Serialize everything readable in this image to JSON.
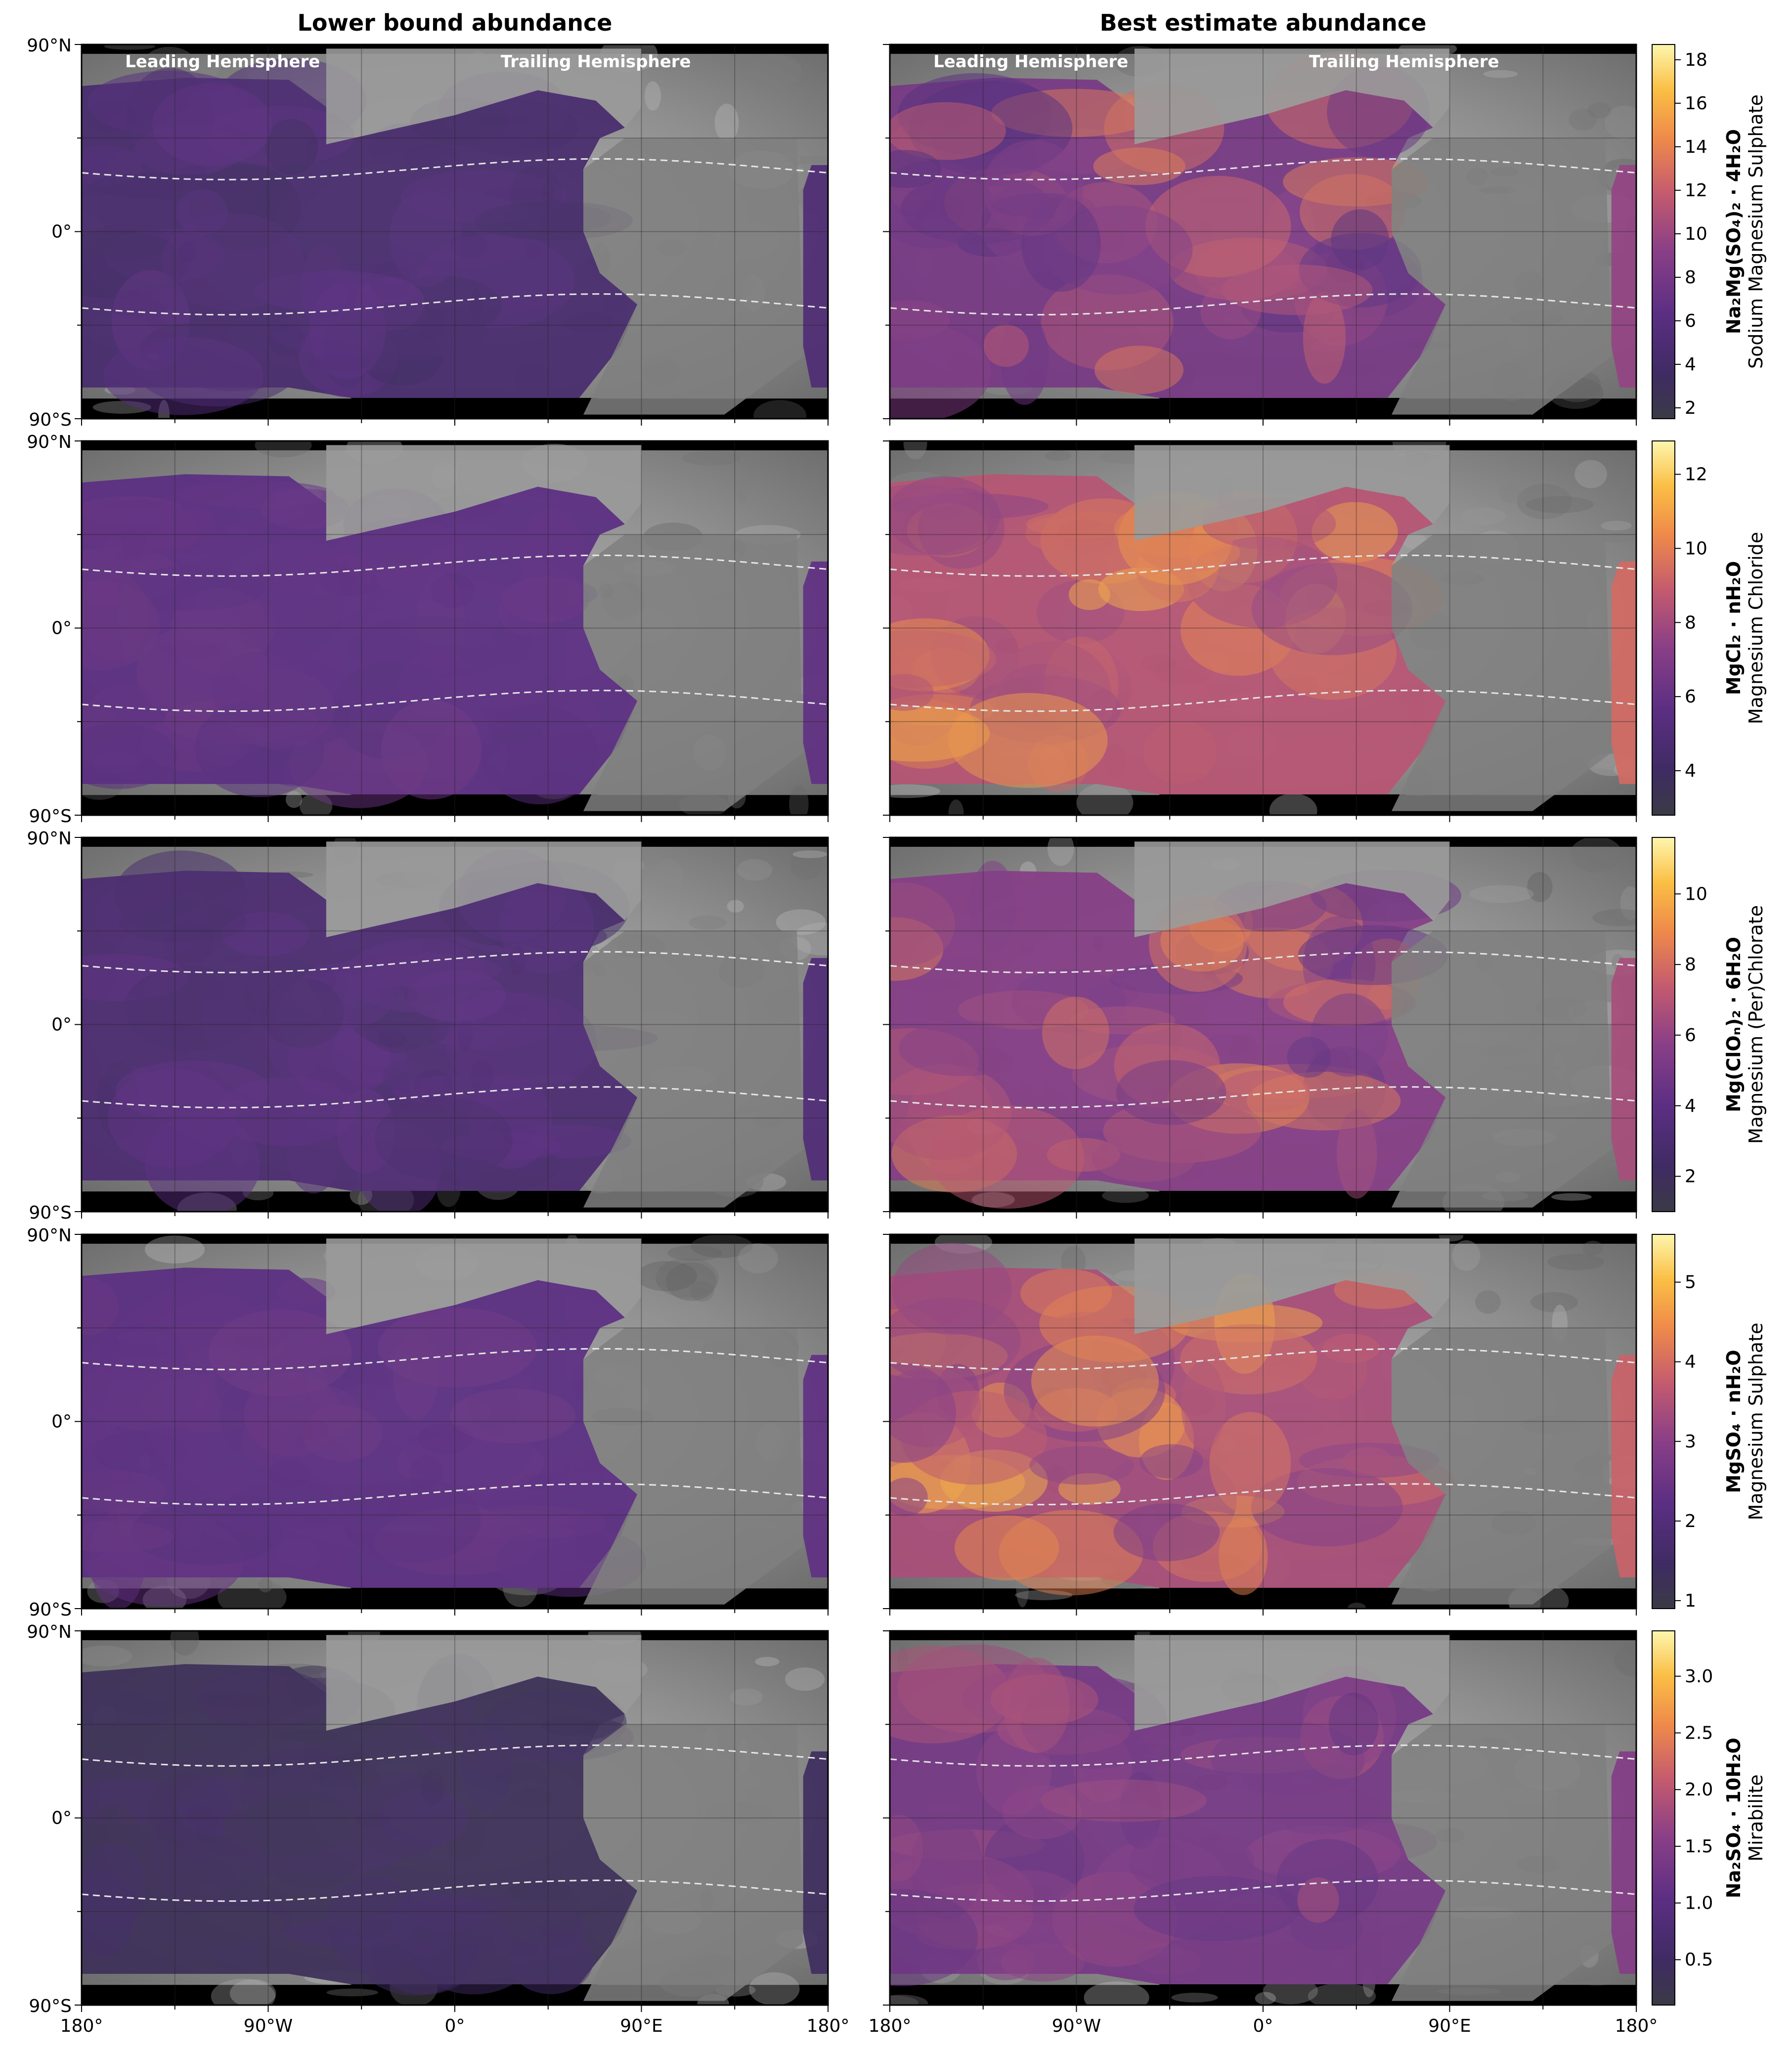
{
  "chart_data": {
    "type": "heatmap",
    "layout": "5 rows x 2 columns of cylindrical surface maps with one colorbar per row",
    "colormap": "inferno",
    "column_titles": [
      "Lower bound abundance",
      "Best estimate abundance"
    ],
    "hemisphere_labels": [
      "Leading Hemisphere",
      "Trailing Hemisphere"
    ],
    "x_ticks": [
      "180°",
      "90°W",
      "0°",
      "90°E",
      "180°"
    ],
    "y_ticks": [
      "90°N",
      "0°",
      "90°S"
    ],
    "xlim_deg": [
      -180,
      180
    ],
    "ylim_deg": [
      -90,
      90
    ],
    "grid": true,
    "grid_spacing_deg": 45,
    "dashed_latitude_lines_deg": [
      -35,
      30
    ],
    "rows": [
      {
        "formula": "Na₂Mg(SO₄)₂ · 4H₂O",
        "name": "Sodium Magnesium Sulphate",
        "colorbar_ticks": [
          "2",
          "4",
          "6",
          "8",
          "10",
          "12",
          "14",
          "16",
          "18"
        ],
        "colorbar_range": [
          1.5,
          18.7
        ],
        "lower_bound_level": [
          0.12,
          0.3
        ],
        "best_estimate_level": [
          0.25,
          0.7
        ]
      },
      {
        "formula": "MgCl₂ · nH₂O",
        "name": "Magnesium Chloride",
        "colorbar_ticks": [
          "4",
          "6",
          "8",
          "10",
          "12"
        ],
        "colorbar_range": [
          2.8,
          12.9
        ],
        "lower_bound_level": [
          0.25,
          0.35
        ],
        "best_estimate_level": [
          0.45,
          0.85
        ]
      },
      {
        "formula": "Mg(ClOₙ)₂ · 6H₂O",
        "name": "Magnesium (Per)Chlorate",
        "colorbar_ticks": [
          "2",
          "4",
          "6",
          "8",
          "10"
        ],
        "colorbar_range": [
          1.0,
          11.6
        ],
        "lower_bound_level": [
          0.15,
          0.3
        ],
        "best_estimate_level": [
          0.3,
          0.75
        ]
      },
      {
        "formula": "MgSO₄ · nH₂O",
        "name": "Magnesium Sulphate",
        "colorbar_ticks": [
          "1",
          "2",
          "3",
          "4",
          "5"
        ],
        "colorbar_range": [
          0.9,
          5.6
        ],
        "lower_bound_level": [
          0.25,
          0.35
        ],
        "best_estimate_level": [
          0.4,
          0.85
        ]
      },
      {
        "formula": "Na₂SO₄ · 10H₂O",
        "name": "Mirabilite",
        "colorbar_ticks": [
          "0.5",
          "1.0",
          "1.5",
          "2.0",
          "2.5",
          "3.0"
        ],
        "colorbar_range": [
          0.1,
          3.4
        ],
        "lower_bound_level": [
          0.05,
          0.15
        ],
        "best_estimate_level": [
          0.3,
          0.55
        ]
      }
    ]
  }
}
